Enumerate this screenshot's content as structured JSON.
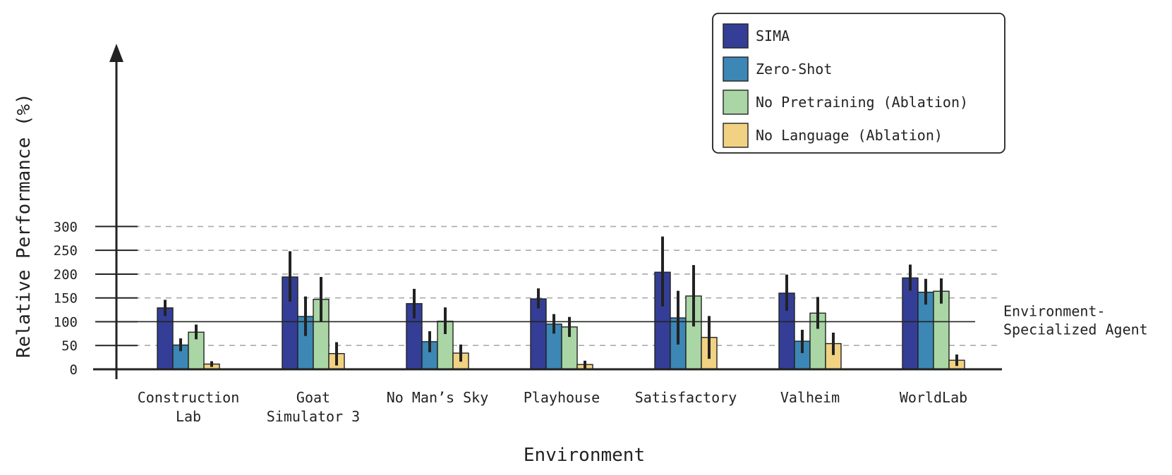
{
  "chart_data": {
    "type": "bar",
    "title": "",
    "xlabel": "Environment",
    "ylabel": "Relative Performance (%)",
    "ylim": [
      0,
      300
    ],
    "yticks": [
      0,
      50,
      100,
      150,
      200,
      250,
      300
    ],
    "grid": "horizontal dashed",
    "legend_position": "top-right",
    "categories": [
      [
        "Construction",
        "Lab"
      ],
      [
        "Goat",
        "Simulator 3"
      ],
      [
        "No Man’s Sky"
      ],
      [
        "Playhouse"
      ],
      [
        "Satisfactory"
      ],
      [
        "Valheim"
      ],
      [
        "WorldLab"
      ]
    ],
    "series": [
      {
        "name": "SIMA",
        "color": "#343e96",
        "values": [
          129,
          194,
          138,
          148,
          204,
          160,
          192
        ],
        "err_low": [
          112,
          142,
          107,
          128,
          132,
          123,
          165
        ],
        "err_high": [
          146,
          248,
          169,
          170,
          279,
          199,
          220
        ]
      },
      {
        "name": "Zero-Shot",
        "color": "#3c87b5",
        "values": [
          51,
          111,
          58,
          95,
          108,
          59,
          162
        ],
        "err_low": [
          38,
          70,
          36,
          75,
          52,
          34,
          136
        ],
        "err_high": [
          65,
          153,
          80,
          116,
          165,
          83,
          190
        ]
      },
      {
        "name": "No Pretraining (Ablation)",
        "color": "#a9d6a4",
        "values": [
          78,
          147,
          101,
          89,
          154,
          118,
          164
        ],
        "err_low": [
          63,
          100,
          74,
          68,
          90,
          85,
          138
        ],
        "err_high": [
          94,
          194,
          130,
          110,
          219,
          152,
          191
        ]
      },
      {
        "name": "No Language (Ablation)",
        "color": "#f1d283",
        "values": [
          11,
          33,
          34,
          10,
          67,
          54,
          19
        ],
        "err_low": [
          5,
          8,
          16,
          2,
          22,
          30,
          7
        ],
        "err_high": [
          17,
          57,
          52,
          18,
          112,
          77,
          31
        ]
      }
    ],
    "reference_line": {
      "value": 100,
      "label": [
        "Environment-",
        "Specialized Agent"
      ]
    }
  }
}
